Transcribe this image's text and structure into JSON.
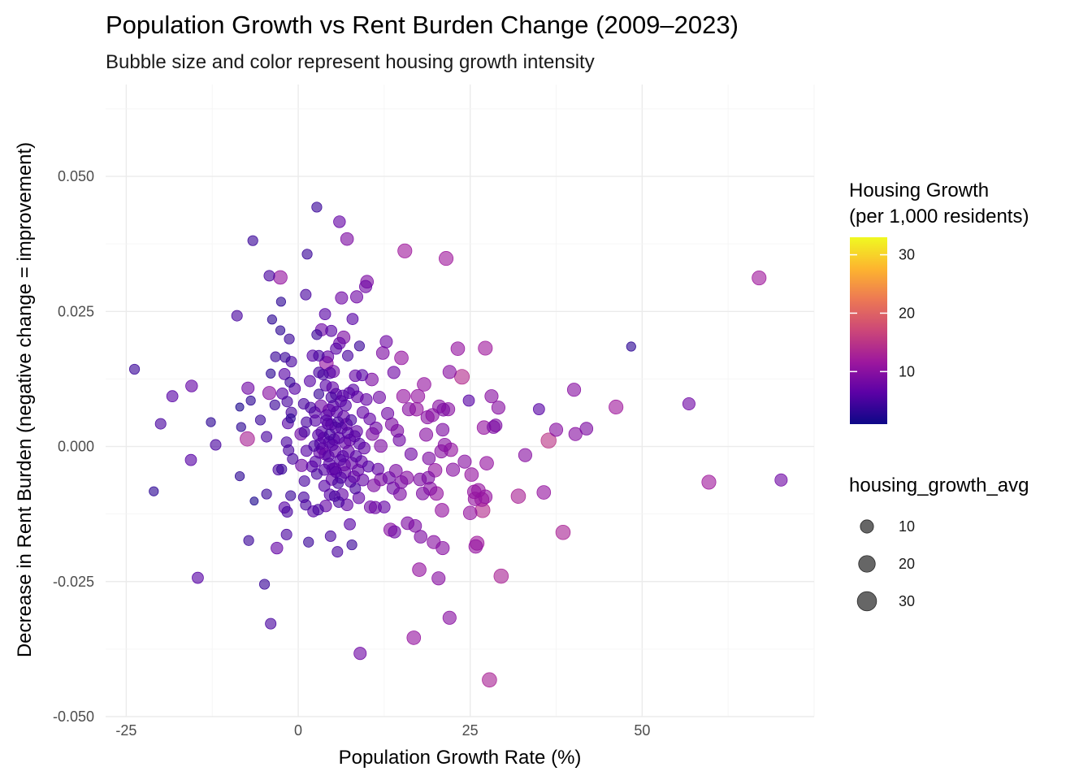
{
  "chart_data": {
    "type": "scatter",
    "title": "Population Growth vs Rent Burden Change (2009–2023)",
    "subtitle": "Bubble size and color represent housing growth intensity",
    "xlabel": "Population Growth Rate (%)",
    "ylabel": "Decrease in Rent Burden (negative change = improvement)",
    "xlim": [
      -28,
      75
    ],
    "ylim": [
      -0.05,
      0.067
    ],
    "x_ticks": [
      -25,
      0,
      25,
      50
    ],
    "x_tick_labels": [
      "-25",
      "0",
      "25",
      "50"
    ],
    "y_ticks": [
      -0.05,
      -0.025,
      0,
      0.025,
      0.05
    ],
    "y_tick_labels": [
      "-0.050",
      "-0.025",
      "0.000",
      "0.025",
      "0.050"
    ],
    "grid": true,
    "color_legend": {
      "title_lines": [
        "Housing Growth",
        "(per 1,000 residents)"
      ],
      "palette": "plasma",
      "colors": [
        "#0d0887",
        "#5c01a6",
        "#9c179e",
        "#cc4778",
        "#ed7953",
        "#fdb42f",
        "#f0f921"
      ],
      "range": [
        1,
        33
      ],
      "ticks": [
        10,
        20,
        30
      ],
      "tick_labels": [
        "10",
        "20",
        "30"
      ],
      "placement": "right"
    },
    "size_legend": {
      "title": "housing_growth_avg",
      "values": [
        10,
        20,
        30
      ],
      "labels": [
        "10",
        "20",
        "30"
      ],
      "placement": "right"
    },
    "points": [
      [
        -23.8,
        0.0143,
        4
      ],
      [
        -21,
        -0.0083,
        3
      ],
      [
        -20,
        0.0042,
        5
      ],
      [
        -18.3,
        0.0093,
        6
      ],
      [
        -15.5,
        0.0112,
        7
      ],
      [
        -15.6,
        -0.0025,
        6
      ],
      [
        -14.6,
        -0.0243,
        6
      ],
      [
        -12.7,
        0.0045,
        3
      ],
      [
        -12,
        0.0003,
        5
      ],
      [
        -8.9,
        0.0242,
        5
      ],
      [
        -8.5,
        0.0073,
        2
      ],
      [
        -8.5,
        -0.0055,
        3
      ],
      [
        -8.3,
        0.0036,
        3
      ],
      [
        -7.4,
        0.0014,
        13
      ],
      [
        -7.3,
        0.0108,
        8
      ],
      [
        -7.2,
        -0.0174,
        4
      ],
      [
        -6.9,
        0.0085,
        3
      ],
      [
        -6.6,
        0.0381,
        4
      ],
      [
        -6.4,
        -0.0101,
        2
      ],
      [
        -5.5,
        0.0049,
        4
      ],
      [
        -4.9,
        -0.0255,
        4
      ],
      [
        -4.6,
        -0.0088,
        4
      ],
      [
        -4.6,
        0.0018,
        5
      ],
      [
        -4.2,
        0.0099,
        10
      ],
      [
        -4.2,
        0.0316,
        5
      ],
      [
        -4,
        0.0135,
        3
      ],
      [
        -4,
        -0.0328,
        5
      ],
      [
        -3.8,
        0.0235,
        3
      ],
      [
        -3.4,
        0.0077,
        4
      ],
      [
        -3.3,
        0.0166,
        4
      ],
      [
        -3.1,
        -0.0188,
        7
      ],
      [
        -2.9,
        -0.0043,
        5
      ],
      [
        -2.6,
        0.0313,
        11
      ],
      [
        -2.6,
        0.0215,
        3
      ],
      [
        -2.5,
        0.0268,
        3
      ],
      [
        -2.4,
        -0.0042,
        4
      ],
      [
        -2.3,
        0.0098,
        6
      ],
      [
        -2,
        -0.0113,
        6
      ],
      [
        -2,
        0.0134,
        6
      ],
      [
        -1.9,
        0.0165,
        4
      ],
      [
        -1.7,
        0.0008,
        5
      ],
      [
        -1.7,
        -0.0163,
        5
      ],
      [
        -1.6,
        -0.0121,
        5
      ],
      [
        -1.6,
        0.0083,
        5
      ],
      [
        -1.5,
        0.0043,
        6
      ],
      [
        -1.4,
        -0.0007,
        5
      ],
      [
        -1.3,
        0.0199,
        4
      ],
      [
        -1.2,
        0.0119,
        4
      ],
      [
        -1.1,
        0.0052,
        3
      ],
      [
        -1.1,
        -0.0091,
        4
      ],
      [
        -1,
        0.0157,
        5
      ],
      [
        -1,
        0.0063,
        5
      ],
      [
        -0.8,
        -0.0023,
        5
      ],
      [
        -0.5,
        0.0107,
        6
      ],
      [
        0.4,
        0.0023,
        8
      ],
      [
        0.5,
        -0.0035,
        8
      ],
      [
        0.8,
        0.0079,
        5
      ],
      [
        0.8,
        -0.0094,
        5
      ],
      [
        0.9,
        0.0027,
        5
      ],
      [
        0.9,
        -0.0064,
        5
      ],
      [
        1.1,
        -0.0108,
        5
      ],
      [
        1.1,
        0.0281,
        5
      ],
      [
        1.2,
        -0.0008,
        6
      ],
      [
        1.2,
        0.0045,
        5
      ],
      [
        1.3,
        0.0356,
        4
      ],
      [
        1.5,
        -0.0177,
        4
      ],
      [
        1.7,
        0.0121,
        6
      ],
      [
        1.8,
        0.0072,
        5
      ],
      [
        2,
        -0.0037,
        6
      ],
      [
        2.1,
        0.0168,
        6
      ],
      [
        2.2,
        -0.012,
        6
      ],
      [
        2.3,
        0.0001,
        5
      ],
      [
        2.4,
        0.0063,
        6
      ],
      [
        2.5,
        -0.0028,
        6
      ],
      [
        2.5,
        0.0048,
        6
      ],
      [
        2.7,
        0.0443,
        4
      ],
      [
        2.7,
        0.0207,
        4
      ],
      [
        2.7,
        -0.0051,
        5
      ],
      [
        2.9,
        0.0021,
        6
      ],
      [
        2.9,
        -0.0117,
        5
      ],
      [
        3,
        0.0137,
        5
      ],
      [
        3,
        0.0097,
        4
      ],
      [
        3,
        0.0168,
        5
      ],
      [
        3.1,
        -0.0011,
        7
      ],
      [
        3.2,
        0.0005,
        6
      ],
      [
        3.3,
        0.0075,
        8
      ],
      [
        3.4,
        0.0216,
        8
      ],
      [
        3.4,
        0.0027,
        6
      ],
      [
        3.5,
        -0.0004,
        7
      ],
      [
        3.6,
        0.0133,
        5
      ],
      [
        3.7,
        0.0016,
        6
      ],
      [
        3.8,
        -0.0073,
        6
      ],
      [
        3.8,
        -0.0043,
        6
      ],
      [
        3.9,
        -0.0014,
        7
      ],
      [
        3.9,
        0.0245,
        6
      ],
      [
        4,
        0.0113,
        6
      ],
      [
        4,
        -0.011,
        7
      ],
      [
        4.1,
        0.0058,
        6
      ],
      [
        4.1,
        0.0048,
        6
      ],
      [
        4.1,
        0.0154,
        11
      ],
      [
        4.3,
        0.0166,
        7
      ],
      [
        4.3,
        0.0042,
        6
      ],
      [
        4.4,
        -0.0018,
        6
      ],
      [
        4.5,
        -0.0032,
        6
      ],
      [
        4.5,
        0.0067,
        8
      ],
      [
        4.5,
        0.0008,
        6
      ],
      [
        4.6,
        -0.0089,
        6
      ],
      [
        4.6,
        0.0136,
        6
      ],
      [
        4.6,
        0.0022,
        5
      ],
      [
        4.7,
        -0.0166,
        5
      ],
      [
        4.8,
        0.0091,
        5
      ],
      [
        4.8,
        0.0214,
        6
      ],
      [
        4.8,
        0.0041,
        6
      ],
      [
        4.9,
        -0.0061,
        7
      ],
      [
        5,
        0.0109,
        7
      ],
      [
        5,
        0.0003,
        6
      ],
      [
        5,
        -0.0042,
        7
      ],
      [
        5.1,
        0.0139,
        8
      ],
      [
        5.1,
        0.0075,
        6
      ],
      [
        5.2,
        0.0013,
        6
      ],
      [
        5.3,
        -0.0092,
        5
      ],
      [
        5.3,
        -0.0041,
        7
      ],
      [
        5.4,
        0.0035,
        6
      ],
      [
        5.4,
        -0.0009,
        7
      ],
      [
        5.5,
        0.0181,
        6
      ],
      [
        5.5,
        0.0097,
        6
      ],
      [
        5.5,
        -0.0047,
        6
      ],
      [
        5.6,
        0.0064,
        6
      ],
      [
        5.7,
        -0.0195,
        5
      ],
      [
        5.8,
        -0.0068,
        5
      ],
      [
        5.8,
        0.0045,
        5
      ],
      [
        5.9,
        0.0016,
        6
      ],
      [
        5.9,
        -0.0103,
        5
      ],
      [
        6,
        0.0191,
        7
      ],
      [
        6,
        0.0416,
        7
      ],
      [
        6.1,
        -0.0025,
        6
      ],
      [
        6.2,
        0.0084,
        6
      ],
      [
        6.2,
        -0.0058,
        6
      ],
      [
        6.3,
        0.0034,
        6
      ],
      [
        6.3,
        0.0275,
        8
      ],
      [
        6.4,
        -0.0089,
        7
      ],
      [
        6.5,
        -0.0018,
        6
      ],
      [
        6.5,
        0.0094,
        6
      ],
      [
        6.6,
        0.0055,
        7
      ],
      [
        6.6,
        0.0202,
        9
      ],
      [
        6.7,
        -0.0034,
        8
      ],
      [
        6.8,
        0.0007,
        7
      ],
      [
        6.8,
        -0.0048,
        7
      ],
      [
        6.9,
        0.0076,
        6
      ],
      [
        7,
        0.0041,
        7
      ],
      [
        7.1,
        -0.0108,
        7
      ],
      [
        7.1,
        0.0384,
        9
      ],
      [
        7.2,
        0.0025,
        6
      ],
      [
        7.2,
        0.0168,
        5
      ],
      [
        7.3,
        -0.0009,
        7
      ],
      [
        7.4,
        0.0099,
        6
      ],
      [
        7.5,
        -0.0144,
        6
      ],
      [
        7.5,
        0.0012,
        7
      ],
      [
        7.6,
        -0.0065,
        6
      ],
      [
        7.7,
        0.0049,
        5
      ],
      [
        7.8,
        -0.0031,
        7
      ],
      [
        7.8,
        -0.0182,
        4
      ],
      [
        7.9,
        0.0236,
        6
      ],
      [
        8,
        0.0105,
        6
      ],
      [
        8.1,
        -0.0056,
        7
      ],
      [
        8.2,
        0.0019,
        6
      ],
      [
        8.3,
        0.0131,
        7
      ],
      [
        8.3,
        -0.0078,
        5
      ],
      [
        8.4,
        -0.0018,
        6
      ],
      [
        8.5,
        0.0028,
        7
      ],
      [
        8.5,
        0.0277,
        8
      ],
      [
        8.6,
        0.0092,
        7
      ],
      [
        8.7,
        -0.0044,
        7
      ],
      [
        8.8,
        -0.0095,
        7
      ],
      [
        8.9,
        0.0186,
        4
      ],
      [
        8.9,
        0.0005,
        6
      ],
      [
        9,
        -0.0383,
        8
      ],
      [
        9.2,
        -0.0028,
        7
      ],
      [
        9.3,
        0.0132,
        6
      ],
      [
        9.4,
        0.0063,
        7
      ],
      [
        9.4,
        -0.0062,
        7
      ],
      [
        9.6,
        -0.0003,
        7
      ],
      [
        9.8,
        0.0296,
        8
      ],
      [
        9.9,
        0.0087,
        7
      ],
      [
        10,
        0.0305,
        9
      ],
      [
        10.2,
        -0.0037,
        6
      ],
      [
        10.4,
        0.0051,
        7
      ],
      [
        10.5,
        -0.0112,
        8
      ],
      [
        10.7,
        0.0124,
        9
      ],
      [
        10.8,
        0.0023,
        9
      ],
      [
        11,
        -0.0072,
        9
      ],
      [
        11.2,
        -0.0113,
        8
      ],
      [
        11.3,
        0.0034,
        8
      ],
      [
        11.6,
        -0.0042,
        7
      ],
      [
        11.8,
        0.0091,
        8
      ],
      [
        12,
        0.0001,
        9
      ],
      [
        12,
        -0.0061,
        9
      ],
      [
        12.3,
        0.0173,
        9
      ],
      [
        12.5,
        -0.0112,
        7
      ],
      [
        12.8,
        0.0194,
        8
      ],
      [
        13,
        0.0061,
        8
      ],
      [
        13.2,
        -0.0058,
        8
      ],
      [
        13.4,
        -0.0154,
        10
      ],
      [
        13.6,
        0.0041,
        9
      ],
      [
        13.8,
        -0.0077,
        8
      ],
      [
        13.9,
        0.0137,
        8
      ],
      [
        14,
        -0.0158,
        8
      ],
      [
        14.2,
        -0.0045,
        9
      ],
      [
        14.4,
        0.0029,
        9
      ],
      [
        14.7,
        0.0012,
        8
      ],
      [
        14.8,
        -0.0088,
        9
      ],
      [
        15,
        0.0164,
        11
      ],
      [
        15,
        -0.0066,
        9
      ],
      [
        15.3,
        0.0093,
        11
      ],
      [
        15.5,
        0.0362,
        12
      ],
      [
        15.8,
        -0.0058,
        10
      ],
      [
        15.9,
        -0.0142,
        9
      ],
      [
        16.1,
        0.0069,
        10
      ],
      [
        16.4,
        -0.0014,
        8
      ],
      [
        16.8,
        -0.0354,
        11
      ],
      [
        17,
        -0.0147,
        9
      ],
      [
        17.2,
        0.0069,
        11
      ],
      [
        17.4,
        0.0093,
        11
      ],
      [
        17.6,
        -0.0228,
        11
      ],
      [
        17.7,
        -0.0061,
        9
      ],
      [
        17.8,
        -0.0167,
        9
      ],
      [
        18.1,
        -0.0087,
        9
      ],
      [
        18.3,
        0.0115,
        11
      ],
      [
        18.6,
        0.0022,
        10
      ],
      [
        18.8,
        0.0054,
        10
      ],
      [
        18.9,
        -0.0058,
        9
      ],
      [
        19,
        -0.0022,
        9
      ],
      [
        19.2,
        -0.0078,
        10
      ],
      [
        19.5,
        0.0058,
        10
      ],
      [
        19.7,
        -0.0177,
        10
      ],
      [
        19.9,
        -0.0044,
        11
      ],
      [
        20.1,
        -0.0087,
        11
      ],
      [
        20.4,
        -0.0244,
        10
      ],
      [
        20.5,
        0.0074,
        10
      ],
      [
        20.8,
        -0.0009,
        10
      ],
      [
        20.9,
        -0.0118,
        11
      ],
      [
        21,
        0.0031,
        9
      ],
      [
        21,
        -0.0188,
        10
      ],
      [
        21.1,
        0.0068,
        9
      ],
      [
        21.3,
        0.0003,
        10
      ],
      [
        21.5,
        0.0348,
        12
      ],
      [
        21.8,
        0.0069,
        10
      ],
      [
        22,
        -0.0317,
        10
      ],
      [
        22,
        0.0138,
        10
      ],
      [
        22.2,
        -0.0006,
        11
      ],
      [
        22.5,
        -0.0043,
        10
      ],
      [
        23.2,
        0.0181,
        11
      ],
      [
        23.8,
        0.0129,
        14
      ],
      [
        24.2,
        -0.0028,
        10
      ],
      [
        24.8,
        0.0085,
        6
      ],
      [
        25,
        -0.0123,
        11
      ],
      [
        25.2,
        -0.0052,
        11
      ],
      [
        25.6,
        -0.0084,
        11
      ],
      [
        25.7,
        -0.0097,
        11
      ],
      [
        25.8,
        -0.0185,
        11
      ],
      [
        26,
        -0.0179,
        12
      ],
      [
        26.2,
        -0.0081,
        11
      ],
      [
        26.7,
        -0.0098,
        12
      ],
      [
        26.8,
        -0.0118,
        14
      ],
      [
        27,
        0.0035,
        11
      ],
      [
        27.2,
        -0.0093,
        11
      ],
      [
        27.2,
        0.0182,
        12
      ],
      [
        27.4,
        -0.0031,
        11
      ],
      [
        27.8,
        -0.0432,
        13
      ],
      [
        28.1,
        0.0093,
        10
      ],
      [
        28.4,
        0.0036,
        9
      ],
      [
        28.7,
        0.0039,
        9
      ],
      [
        29.1,
        0.0072,
        10
      ],
      [
        29.5,
        -0.024,
        13
      ],
      [
        32,
        -0.0092,
        13
      ],
      [
        33,
        -0.0016,
        10
      ],
      [
        35,
        0.0069,
        6
      ],
      [
        35.7,
        -0.0085,
        11
      ],
      [
        36.4,
        0.0011,
        15
      ],
      [
        37.5,
        0.0031,
        10
      ],
      [
        38.5,
        -0.0159,
        13
      ],
      [
        40.1,
        0.0105,
        10
      ],
      [
        40.3,
        0.0023,
        10
      ],
      [
        41.9,
        0.0033,
        9
      ],
      [
        46.2,
        0.0073,
        12
      ],
      [
        48.4,
        0.0185,
        3
      ],
      [
        56.8,
        0.0079,
        8
      ],
      [
        59.7,
        -0.0066,
        12
      ],
      [
        67,
        0.0312,
        12
      ],
      [
        70.2,
        -0.0062,
        8
      ]
    ]
  }
}
